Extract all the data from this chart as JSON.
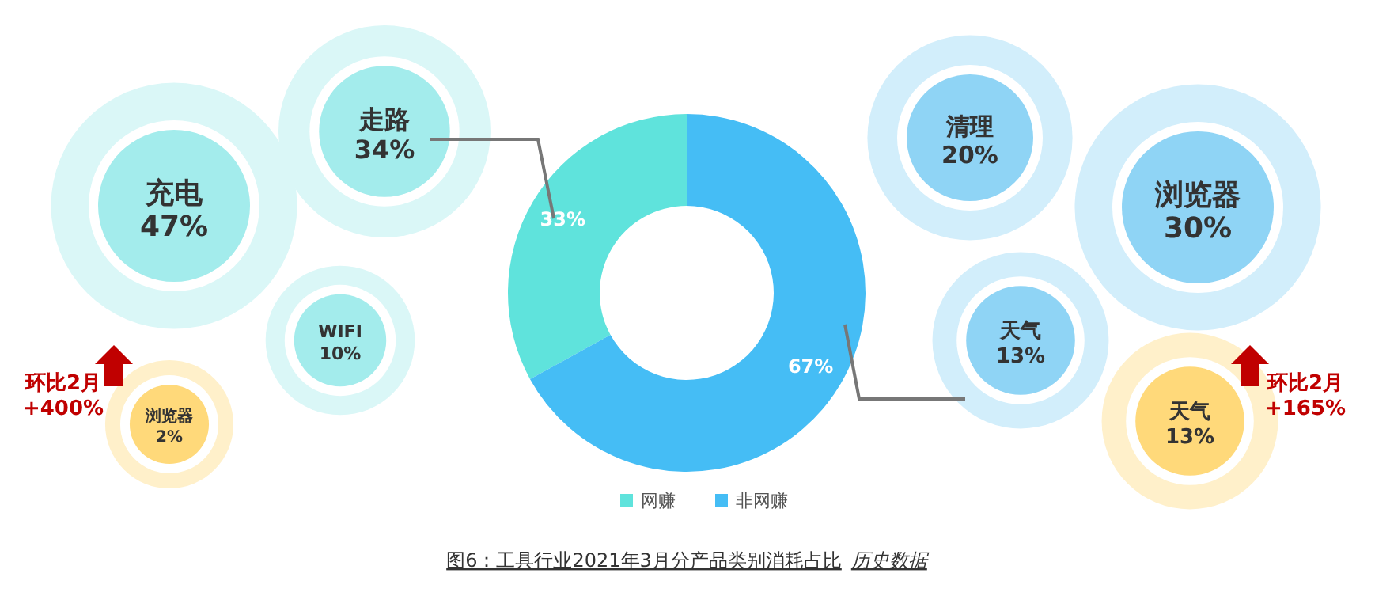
{
  "chart_data": [
    {
      "type": "donut",
      "title": "图6：工具行业2021年3月分产品类别消耗占比",
      "annotations": [
        "历史数据"
      ],
      "categories": [
        "网赚",
        "非网赚"
      ],
      "values": [
        33,
        67
      ],
      "value_labels": [
        "33%",
        "67%"
      ],
      "data_labels": true,
      "colors": [
        "#5fe3dc",
        "#45bdf5"
      ],
      "legend": "bottom"
    },
    {
      "type": "other",
      "categories": [
        "充电",
        "走路",
        "WIFI",
        "浏览器"
      ],
      "values": [
        47,
        34,
        10,
        2
      ],
      "value_labels": [
        "47%",
        "34%",
        "10%",
        "2%"
      ],
      "colors": [
        "#a3ecec",
        "#a3ecec",
        "#a3ecec",
        "#ffd97a"
      ],
      "annotations": [
        "环比2月 +400%"
      ]
    },
    {
      "type": "other",
      "categories": [
        "清理",
        "浏览器",
        "天气",
        "天气"
      ],
      "values": [
        20,
        30,
        13,
        13
      ],
      "value_labels": [
        "20%",
        "30%",
        "13%",
        "13%"
      ],
      "colors": [
        "#8fd4f5",
        "#8fd4f5",
        "#8fd4f5",
        "#ffd97a"
      ],
      "annotations": [
        "环比2月 +165%"
      ]
    }
  ]
}
